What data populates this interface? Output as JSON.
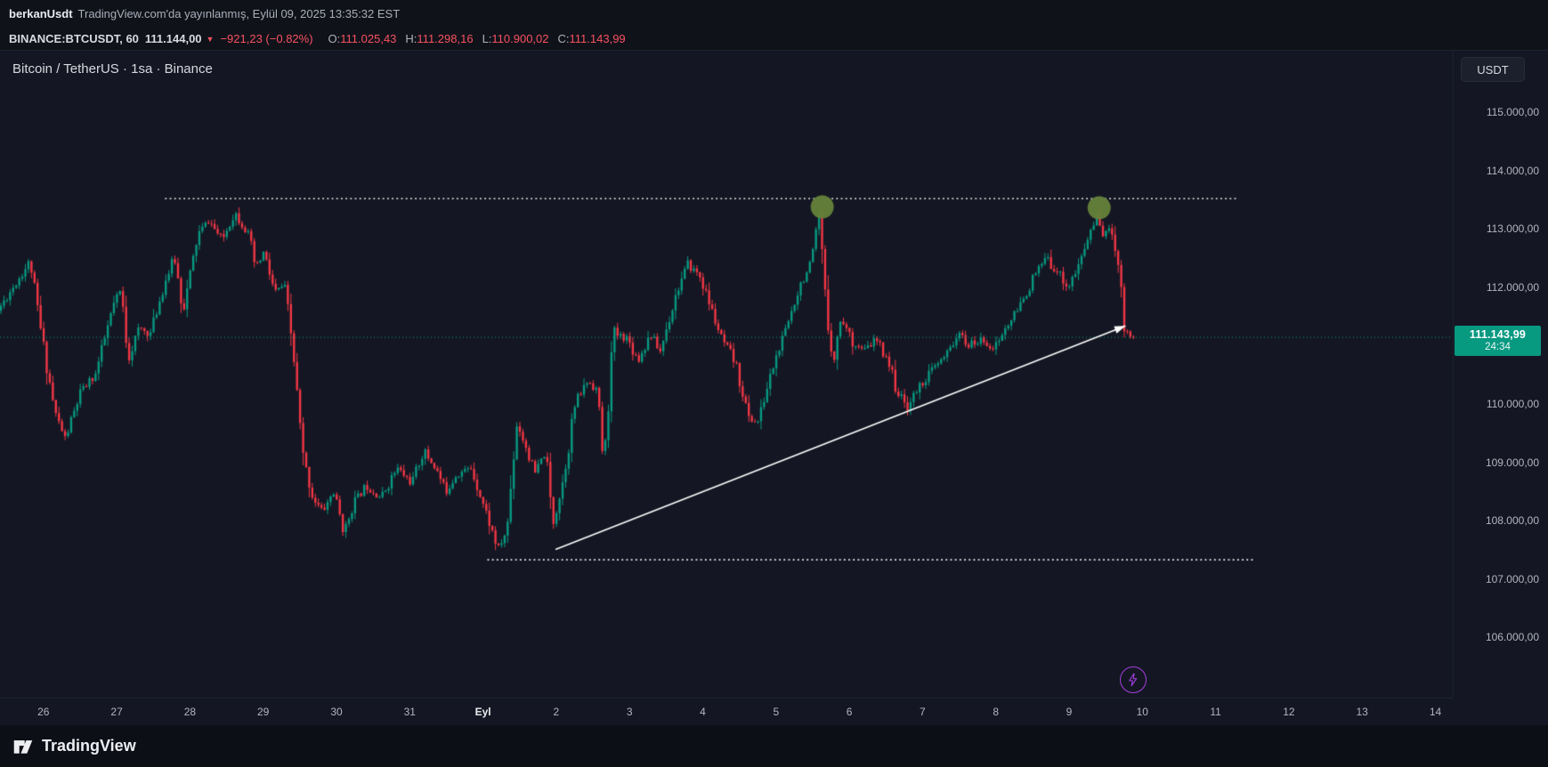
{
  "attribution": {
    "username": "berkanUsdt",
    "text": "TradingView.com'da yayınlanmış, Eylül 09, 2025 13:35:32 EST"
  },
  "symbol_bar": {
    "symbol": "BINANCE:BTCUSDT, 60",
    "last_price": "111.144,00",
    "direction_icon": "▼",
    "change": "−921,23 (−0.82%)",
    "ohlc": [
      {
        "label": "O:",
        "value": "111.025,43"
      },
      {
        "label": "H:",
        "value": "111.298,16"
      },
      {
        "label": "L:",
        "value": "110.900,02"
      },
      {
        "label": "C:",
        "value": "111.143,99"
      }
    ]
  },
  "chart": {
    "title": "Bitcoin / TetherUS · 1sa · Binance",
    "currency_button": "USDT",
    "price_label": {
      "price": "111.143,99",
      "countdown": "24:34"
    }
  },
  "footer": {
    "brand": "TradingView"
  },
  "chart_data": {
    "type": "candlestick",
    "pair": "Bitcoin / TetherUS",
    "exchange": "Binance",
    "interval": "1sa",
    "last_bar": {
      "open": 111025.43,
      "high": 111298.16,
      "low": 110900.02,
      "close": 111143.99,
      "change": -921.23,
      "change_pct": -0.82
    },
    "colors": {
      "up": "#089981",
      "down": "#f23645"
    },
    "clamp": {
      "high": 113540,
      "low": 107290
    },
    "visible_range": {
      "t_start": -0.58,
      "t_end": 14.9,
      "price_top": 116040,
      "price_bottom": 104970
    },
    "last_close": 111143.99,
    "y_axis": {
      "ticks": [
        {
          "v": 115000,
          "label": "115.000,00"
        },
        {
          "v": 114000,
          "label": "114.000,00"
        },
        {
          "v": 113000,
          "label": "113.000,00"
        },
        {
          "v": 112000,
          "label": "112.000,00"
        },
        {
          "v": 111000,
          "label": "111.000,00"
        },
        {
          "v": 110000,
          "label": "110.000,00"
        },
        {
          "v": 109000,
          "label": "109.000,00"
        },
        {
          "v": 108000,
          "label": "108.000,00"
        },
        {
          "v": 107000,
          "label": "107.000,00"
        },
        {
          "v": 106000,
          "label": "106.000,00"
        }
      ]
    },
    "x_axis": {
      "ticks": [
        {
          "t": 0,
          "label": "26"
        },
        {
          "t": 1,
          "label": "27"
        },
        {
          "t": 2,
          "label": "28"
        },
        {
          "t": 3,
          "label": "29"
        },
        {
          "t": 4,
          "label": "30"
        },
        {
          "t": 5,
          "label": "31"
        },
        {
          "t": 6,
          "label": "Eyl",
          "bold": true
        },
        {
          "t": 7,
          "label": "2"
        },
        {
          "t": 8,
          "label": "3"
        },
        {
          "t": 9,
          "label": "4"
        },
        {
          "t": 10,
          "label": "5"
        },
        {
          "t": 11,
          "label": "6"
        },
        {
          "t": 12,
          "label": "7"
        },
        {
          "t": 13,
          "label": "8"
        },
        {
          "t": 14,
          "label": "9"
        },
        {
          "t": 15,
          "label": "10"
        },
        {
          "t": 16,
          "label": "11"
        },
        {
          "t": 17,
          "label": "12"
        },
        {
          "t": 18,
          "label": "13"
        },
        {
          "t": 19,
          "label": "14"
        }
      ]
    },
    "price_path": [
      [
        -0.58,
        111600
      ],
      [
        -0.35,
        112050
      ],
      [
        -0.14,
        112450
      ],
      [
        0,
        111300
      ],
      [
        0.2,
        109850
      ],
      [
        0.34,
        109400
      ],
      [
        0.55,
        110200
      ],
      [
        0.75,
        110500
      ],
      [
        1,
        111700
      ],
      [
        1.1,
        111950
      ],
      [
        1.2,
        110800
      ],
      [
        1.35,
        111300
      ],
      [
        1.5,
        111200
      ],
      [
        1.7,
        112100
      ],
      [
        1.83,
        112500
      ],
      [
        1.95,
        111600
      ],
      [
        2.15,
        112900
      ],
      [
        2.3,
        113150
      ],
      [
        2.48,
        112800
      ],
      [
        2.65,
        113300
      ],
      [
        2.84,
        112900
      ],
      [
        2.94,
        112300
      ],
      [
        3.05,
        112600
      ],
      [
        3.2,
        111900
      ],
      [
        3.33,
        112050
      ],
      [
        3.45,
        110900
      ],
      [
        3.58,
        109100
      ],
      [
        3.72,
        108400
      ],
      [
        3.85,
        108150
      ],
      [
        4,
        108500
      ],
      [
        4.15,
        107800
      ],
      [
        4.27,
        108300
      ],
      [
        4.45,
        108600
      ],
      [
        4.65,
        108400
      ],
      [
        4.87,
        108900
      ],
      [
        5.07,
        108650
      ],
      [
        5.23,
        109200
      ],
      [
        5.4,
        108900
      ],
      [
        5.53,
        108500
      ],
      [
        5.67,
        108800
      ],
      [
        5.88,
        108900
      ],
      [
        6.07,
        108200
      ],
      [
        6.25,
        107500
      ],
      [
        6.37,
        107850
      ],
      [
        6.5,
        109700
      ],
      [
        6.62,
        109300
      ],
      [
        6.75,
        108800
      ],
      [
        6.9,
        109200
      ],
      [
        6.99,
        107950
      ],
      [
        7.12,
        108600
      ],
      [
        7.3,
        110000
      ],
      [
        7.47,
        110400
      ],
      [
        7.6,
        110250
      ],
      [
        7.69,
        108950
      ],
      [
        7.82,
        111200
      ],
      [
        8,
        111150
      ],
      [
        8.16,
        110750
      ],
      [
        8.33,
        111200
      ],
      [
        8.46,
        110900
      ],
      [
        8.68,
        111900
      ],
      [
        8.84,
        112400
      ],
      [
        9,
        112200
      ],
      [
        9.14,
        111700
      ],
      [
        9.3,
        111100
      ],
      [
        9.49,
        110700
      ],
      [
        9.67,
        109750
      ],
      [
        9.8,
        109700
      ],
      [
        9.99,
        110600
      ],
      [
        10.16,
        111200
      ],
      [
        10.35,
        112000
      ],
      [
        10.52,
        112400
      ],
      [
        10.63,
        113200
      ],
      [
        10.73,
        111500
      ],
      [
        10.83,
        110750
      ],
      [
        10.93,
        111500
      ],
      [
        11.07,
        111100
      ],
      [
        11.24,
        110900
      ],
      [
        11.4,
        111100
      ],
      [
        11.56,
        110800
      ],
      [
        11.7,
        110200
      ],
      [
        11.83,
        109950
      ],
      [
        12,
        110300
      ],
      [
        12.18,
        110600
      ],
      [
        12.35,
        110800
      ],
      [
        12.52,
        111200
      ],
      [
        12.68,
        111000
      ],
      [
        12.86,
        111100
      ],
      [
        13.02,
        110950
      ],
      [
        13.18,
        111300
      ],
      [
        13.36,
        111650
      ],
      [
        13.53,
        112100
      ],
      [
        13.72,
        112500
      ],
      [
        13.9,
        112250
      ],
      [
        14.03,
        112000
      ],
      [
        14.17,
        112350
      ],
      [
        14.34,
        113000
      ],
      [
        14.42,
        113200
      ],
      [
        14.52,
        112900
      ],
      [
        14.62,
        113000
      ],
      [
        14.72,
        112400
      ],
      [
        14.8,
        111300
      ],
      [
        14.9,
        111144
      ]
    ],
    "overlays": {
      "resistance_line": {
        "price": 113520,
        "t1": 1.66,
        "t2": 16.28,
        "style": "dotted",
        "color": "#f2f2f2"
      },
      "support_line": {
        "price": 107330,
        "t1": 6.06,
        "t2": 16.54,
        "style": "dotted",
        "color": "#f2f2f2"
      },
      "trend_arrow": {
        "from": [
          6.99,
          107510
        ],
        "to": [
          14.77,
          111340
        ],
        "color": "#ffffff"
      },
      "circles": [
        {
          "t": 10.63,
          "price": 113380,
          "r": 13,
          "color": "#65823a"
        },
        {
          "t": 14.41,
          "price": 113365,
          "r": 13,
          "color": "#65823a"
        }
      ],
      "current_price_line": {
        "price": 111143.99,
        "color": "#089981"
      }
    }
  }
}
